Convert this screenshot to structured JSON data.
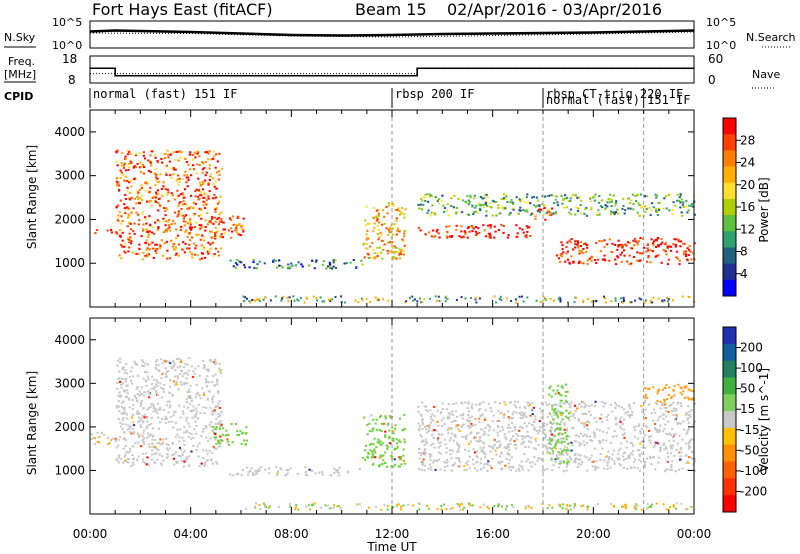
{
  "header": {
    "title": "Fort Hays East (fitACF)",
    "beam": "Beam 15",
    "date_range": "02/Apr/2016 - 03/Apr/2016"
  },
  "noise_panel": {
    "left_label": "N.Sky",
    "right_label": "N.Search",
    "left_ticks": [
      "10^5",
      "10^0"
    ],
    "right_ticks": [
      "10^5",
      "10^0"
    ]
  },
  "freq_panel": {
    "left_label_1": "Freq.",
    "left_label_2": "[MHz]",
    "left_ticks": [
      "18",
      "8"
    ],
    "right_label": "Nave",
    "right_ticks": [
      "60",
      "0"
    ]
  },
  "cpid": {
    "label": "CPID",
    "segments": [
      {
        "start_h": 0.0,
        "text": "normal (fast) 151 IF",
        "row": 0
      },
      {
        "start_h": 12.0,
        "text": "rbsp 200 IF",
        "row": 0
      },
      {
        "start_h": 18.0,
        "text": "rbsp CT-trig 220 IF",
        "row": 0
      },
      {
        "start_h": 18.0,
        "text": "normal (fast) 151 IF",
        "row": 1
      }
    ],
    "boundaries_h": [
      12.0,
      18.0,
      22.0
    ]
  },
  "power_panel": {
    "ylabel": "Slant Range [km]",
    "cbar_label": "Power [dB]",
    "cbar_ticks": [
      "28",
      "24",
      "20",
      "16",
      "12",
      "8",
      "4"
    ],
    "cbar_colors": [
      "#ff0000",
      "#ff4000",
      "#ff8000",
      "#ffb000",
      "#ffe030",
      "#b0d000",
      "#60c040",
      "#30a070",
      "#206080",
      "#203090",
      "#0000ff"
    ]
  },
  "velocity_panel": {
    "ylabel": "Slant Range [km]",
    "cbar_label": "Velocity [m s^-1]",
    "cbar_ticks": [
      "200",
      "100",
      "50",
      "15",
      "-15",
      "-50",
      "-100",
      "-200"
    ],
    "cbar_colors": [
      "#2030b0",
      "#1060a0",
      "#208060",
      "#40b040",
      "#80d060",
      "#c8c8c8",
      "#ffc000",
      "#ff9000",
      "#ff6000",
      "#ff3000",
      "#ff0000"
    ]
  },
  "x_axis": {
    "label": "Time UT",
    "tick_labels": [
      "00:00",
      "04:00",
      "08:00",
      "12:00",
      "16:00",
      "20:00",
      "00:00"
    ]
  },
  "chart_data": [
    {
      "type": "line",
      "title": "",
      "xlabel": "",
      "ylabel": "N.Sky",
      "x_range_h": [
        0,
        24
      ],
      "series": [
        {
          "name": "N.Sky",
          "x": [
            0,
            1,
            2,
            4,
            6,
            8,
            10,
            12,
            14,
            16,
            18,
            20,
            22,
            24
          ],
          "y": [
            3.1,
            3.3,
            3.2,
            3.0,
            2.7,
            2.4,
            2.3,
            2.4,
            2.6,
            2.7,
            2.8,
            2.9,
            3.1,
            3.3
          ]
        },
        {
          "name": "N.Search",
          "x": [
            0,
            4,
            8,
            12,
            16,
            20,
            24
          ],
          "y": [
            2.8,
            2.7,
            2.2,
            2.0,
            2.3,
            2.6,
            3.0
          ]
        }
      ]
    },
    {
      "type": "line",
      "title": "",
      "xlabel": "",
      "ylabel": "Freq. [MHz]",
      "x_range_h": [
        0,
        24
      ],
      "series": [
        {
          "name": "Freq.",
          "x": [
            0,
            1.0,
            1.0,
            13.0,
            13.0,
            24
          ],
          "y": [
            13.5,
            13.5,
            10.5,
            10.5,
            13.5,
            13.5
          ]
        },
        {
          "name": "Nave",
          "x": [
            0,
            13.0,
            13.0,
            24
          ],
          "y": [
            20,
            20,
            32,
            32
          ]
        }
      ]
    },
    {
      "type": "heatmap",
      "title": "",
      "xlabel": "Time UT",
      "ylabel": "Slant Range [km]",
      "z_label": "Power [dB]",
      "ylim": [
        0,
        4500
      ],
      "yticks": [
        1000,
        2000,
        3000,
        4000
      ],
      "x_range_h": [
        0,
        24
      ],
      "bands": [
        {
          "from_h": 0.0,
          "to_h": 1.0,
          "range_km": [
            1700,
            1800
          ],
          "power_db": 28
        },
        {
          "from_h": 1.0,
          "to_h": 5.2,
          "range_km": [
            1100,
            3600
          ],
          "power_db": 24
        },
        {
          "from_h": 4.8,
          "to_h": 6.2,
          "range_km": [
            1600,
            2100
          ],
          "power_db": 24
        },
        {
          "from_h": 5.5,
          "to_h": 10.8,
          "range_km": [
            900,
            1100
          ],
          "power_db": 8
        },
        {
          "from_h": 10.8,
          "to_h": 12.5,
          "range_km": [
            1100,
            2400
          ],
          "power_db": 20
        },
        {
          "from_h": 13.0,
          "to_h": 17.5,
          "range_km": [
            1600,
            1900
          ],
          "power_db": 28
        },
        {
          "from_h": 17.5,
          "to_h": 18.5,
          "range_km": [
            2000,
            2300
          ],
          "power_db": 28
        },
        {
          "from_h": 18.5,
          "to_h": 24.0,
          "range_km": [
            1000,
            1600
          ],
          "power_db": 28
        },
        {
          "from_h": 13.0,
          "to_h": 24.0,
          "range_km": [
            2100,
            2600
          ],
          "power_db": 12
        }
      ]
    },
    {
      "type": "heatmap",
      "title": "",
      "xlabel": "Time UT",
      "ylabel": "Slant Range [km]",
      "z_label": "Velocity [m s^-1]",
      "ylim": [
        0,
        4500
      ],
      "yticks": [
        1000,
        2000,
        3000,
        4000
      ],
      "x_range_h": [
        0,
        24
      ],
      "bands": [
        {
          "from_h": 0.0,
          "to_h": 1.0,
          "range_km": [
            1600,
            1900
          ],
          "velocity": -30
        },
        {
          "from_h": 1.0,
          "to_h": 5.2,
          "range_km": [
            1100,
            3600
          ],
          "velocity": -15
        },
        {
          "from_h": 4.8,
          "to_h": 6.2,
          "range_km": [
            1600,
            2100
          ],
          "velocity": 30
        },
        {
          "from_h": 5.5,
          "to_h": 10.8,
          "range_km": [
            900,
            1100
          ],
          "velocity": -10
        },
        {
          "from_h": 10.8,
          "to_h": 12.5,
          "range_km": [
            1100,
            2300
          ],
          "velocity": 30
        },
        {
          "from_h": 13.0,
          "to_h": 24.0,
          "range_km": [
            1000,
            2600
          ],
          "velocity": 0
        },
        {
          "from_h": 18.2,
          "to_h": 19.0,
          "range_km": [
            1100,
            3000
          ],
          "velocity": 30
        },
        {
          "from_h": 22.0,
          "to_h": 24.0,
          "range_km": [
            2600,
            3000
          ],
          "velocity": -50
        }
      ]
    }
  ]
}
